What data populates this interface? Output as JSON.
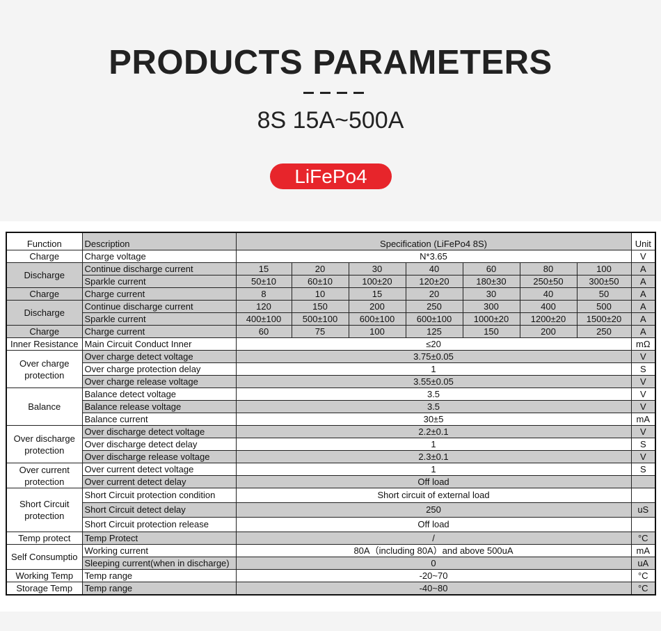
{
  "header": {
    "title": "PRODUCTS PARAMETERS",
    "subtitle": "8S  15A~500A",
    "badge": "LiFePo4",
    "badge_color": "#e7252b"
  },
  "table": {
    "columns": {
      "function": "Function",
      "description": "Description",
      "specification": "Specification (LiFePo4 8S)",
      "unit": "Unit"
    },
    "shade_color": "#cccccc",
    "rows": [
      {
        "function": "Charge",
        "span": 1,
        "fshade": false,
        "description": "Charge voltage",
        "spec": "N*3.65",
        "unit": "V",
        "shaded": false
      },
      {
        "function": "Discharge",
        "span": 2,
        "fshade": true,
        "description": "Continue discharge current",
        "spec": [
          "15",
          "20",
          "30",
          "40",
          "60",
          "80",
          "100"
        ],
        "unit": "A",
        "shaded": true
      },
      {
        "description": "Sparkle current",
        "spec": [
          "50±10",
          "60±10",
          "100±20",
          "120±20",
          "180±30",
          "250±50",
          "300±50"
        ],
        "unit": "A",
        "shaded": true
      },
      {
        "function": "Charge",
        "span": 1,
        "fshade": true,
        "description": "Charge current",
        "spec": [
          "8",
          "10",
          "15",
          "20",
          "30",
          "40",
          "50"
        ],
        "unit": "A",
        "shaded": true
      },
      {
        "function": "Discharge",
        "span": 2,
        "fshade": true,
        "description": "Continue discharge current",
        "spec": [
          "120",
          "150",
          "200",
          "250",
          "300",
          "400",
          "500"
        ],
        "unit": "A",
        "shaded": true
      },
      {
        "description": "Sparkle current",
        "spec": [
          "400±100",
          "500±100",
          "600±100",
          "600±100",
          "1000±20",
          "1200±20",
          "1500±20"
        ],
        "unit": "A",
        "shaded": true
      },
      {
        "function": "Charge",
        "span": 1,
        "fshade": true,
        "description": "Charge current",
        "spec": [
          "60",
          "75",
          "100",
          "125",
          "150",
          "200",
          "250"
        ],
        "unit": "A",
        "shaded": true
      },
      {
        "function": "Inner Resistance",
        "span": 1,
        "fshade": false,
        "description": "Main Circuit Conduct Inner",
        "spec": "≤20",
        "unit": "mΩ",
        "shaded": false
      },
      {
        "function": "Over charge protection",
        "span": 3,
        "fshade": false,
        "description": "Over charge detect voltage",
        "spec": "3.75±0.05",
        "unit": "V",
        "shaded": true
      },
      {
        "description": "Over charge protection delay",
        "spec": "1",
        "unit": "S",
        "shaded": false
      },
      {
        "description": "Over charge release voltage",
        "spec": "3.55±0.05",
        "unit": "V",
        "shaded": true
      },
      {
        "function": "Balance",
        "span": 3,
        "fshade": false,
        "description": "Balance detect voltage",
        "spec": "3.5",
        "unit": "V",
        "shaded": false
      },
      {
        "description": "Balance release voltage",
        "spec": "3.5",
        "unit": "V",
        "shaded": true
      },
      {
        "description": "Balance current",
        "spec": "30±5",
        "unit": "mA",
        "shaded": false
      },
      {
        "function": "Over discharge protection",
        "span": 3,
        "fshade": false,
        "description": "Over discharge detect voltage",
        "spec": "2.2±0.1",
        "unit": "V",
        "shaded": true
      },
      {
        "description": "Over discharge detect delay",
        "spec": "1",
        "unit": "S",
        "shaded": false
      },
      {
        "description": "Over discharge release voltage",
        "spec": "2.3±0.1",
        "unit": "V",
        "shaded": true
      },
      {
        "function": "Over current protection",
        "span": 2,
        "fshade": false,
        "description": "Over current detect voltage",
        "spec": "1",
        "unit": "S",
        "shaded": false
      },
      {
        "description": "Over current detect delay",
        "spec": "Off load",
        "unit": "",
        "shaded": true
      },
      {
        "function": "Short Circuit protection",
        "span": 3,
        "fshade": false,
        "description": "Short Circuit protection condition",
        "spec": "Short circuit of external load",
        "unit": "",
        "shaded": false,
        "tall": true
      },
      {
        "description": "Short Circuit detect delay",
        "spec": "250",
        "unit": "uS",
        "shaded": true,
        "tall": true
      },
      {
        "description": "Short Circuit protection release",
        "spec": "Off load",
        "unit": "",
        "shaded": false,
        "tall": true
      },
      {
        "function": "Temp protect",
        "span": 1,
        "fshade": false,
        "description": "Temp Protect",
        "spec": "/",
        "unit": "°C",
        "shaded": true
      },
      {
        "function": "Self Consumptio",
        "span": 2,
        "fshade": false,
        "description": "Working current",
        "spec": "80A（including 80A）and above 500uA",
        "unit": "mA",
        "shaded": false
      },
      {
        "description": "Sleeping current(when in discharge)",
        "spec": "0",
        "unit": "uA",
        "shaded": true
      },
      {
        "function": "Working Temp",
        "span": 1,
        "fshade": false,
        "description": "Temp range",
        "spec": "-20~70",
        "unit": "°C",
        "shaded": false
      },
      {
        "function": "Storage Temp",
        "span": 1,
        "fshade": false,
        "description": "Temp range",
        "spec": "-40~80",
        "unit": "°C",
        "shaded": true
      }
    ]
  }
}
